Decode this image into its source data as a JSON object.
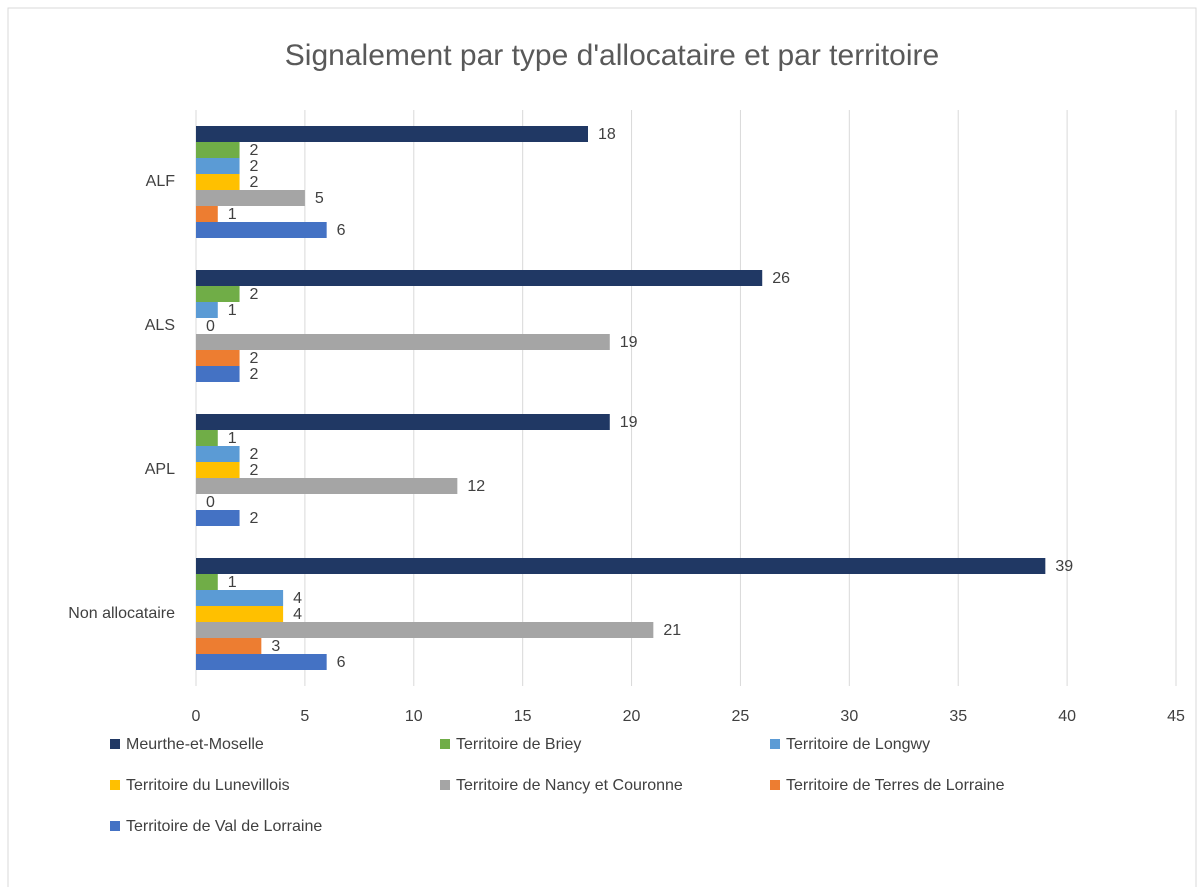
{
  "chart_data": {
    "type": "bar",
    "orientation": "horizontal",
    "title": "Signalement par type d'allocataire et par territoire",
    "categories": [
      "ALF",
      "ALS",
      "APL",
      "Non allocataire"
    ],
    "series": [
      {
        "name": "Meurthe-et-Moselle",
        "color": "#203864",
        "values": [
          18,
          26,
          19,
          39
        ]
      },
      {
        "name": "Territoire de Briey",
        "color": "#70ad47",
        "values": [
          2,
          2,
          1,
          1
        ]
      },
      {
        "name": "Territoire de Longwy",
        "color": "#5b9bd5",
        "values": [
          2,
          1,
          2,
          4
        ]
      },
      {
        "name": "Territoire du Lunevillois",
        "color": "#ffc000",
        "values": [
          2,
          0,
          2,
          4
        ]
      },
      {
        "name": "Territoire de Nancy et Couronne",
        "color": "#a5a5a5",
        "values": [
          5,
          19,
          12,
          21
        ]
      },
      {
        "name": "Territoire de Terres de Lorraine",
        "color": "#ed7d31",
        "values": [
          1,
          2,
          0,
          3
        ]
      },
      {
        "name": "Territoire de Val de Lorraine",
        "color": "#4472c4",
        "values": [
          6,
          2,
          2,
          6
        ]
      }
    ],
    "xlim": [
      0,
      45
    ],
    "xticks": [
      0,
      5,
      10,
      15,
      20,
      25,
      30,
      35,
      40,
      45
    ],
    "grid": true,
    "legend": "bottom"
  }
}
